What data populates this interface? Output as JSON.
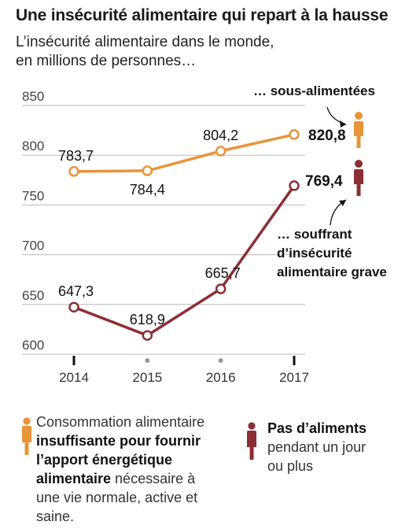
{
  "title": "Une insécurité alimentaire qui repart à la hausse",
  "subtitle_line1": "L’insécurité alimentaire dans le monde,",
  "subtitle_line2": "en millions de personnes…",
  "chart_data": {
    "type": "line",
    "x": [
      "2014",
      "2015",
      "2016",
      "2017"
    ],
    "ylim": [
      600,
      850
    ],
    "yticks": [
      "850",
      "800",
      "750",
      "700",
      "650",
      "600"
    ],
    "grid": true,
    "series": [
      {
        "name": "… sous-alimentées",
        "values": [
          783.7,
          784.4,
          804.2,
          820.8
        ],
        "labels": [
          "783,7",
          "784,4",
          "804,2",
          "820,8"
        ],
        "color": "#e8943a"
      },
      {
        "name": "… souffrant d’insécurité alimentaire grave",
        "name_lines": [
          "… souffrant",
          "d’insécurité",
          "alimentaire grave"
        ],
        "values": [
          647.3,
          618.9,
          665.7,
          769.4
        ],
        "labels": [
          "647,3",
          "618,9",
          "665,7",
          "769,4"
        ],
        "color": "#8b2e35"
      }
    ]
  },
  "legend": {
    "left": {
      "line1": "Consommation alimentaire",
      "line2": "insuffisante pour fournir",
      "line3": "l’apport énergétique",
      "line4_bold": "alimentaire",
      "line4_rest": " nécessaire à",
      "line5": "une vie normale, active et",
      "line6": "saine.",
      "icon": "person-icon",
      "color": "#e8943a"
    },
    "right": {
      "line1": "Pas d’aliments",
      "line2": "pendant un jour",
      "line3": "ou plus",
      "icon": "person-icon",
      "color": "#8b2e35"
    }
  }
}
